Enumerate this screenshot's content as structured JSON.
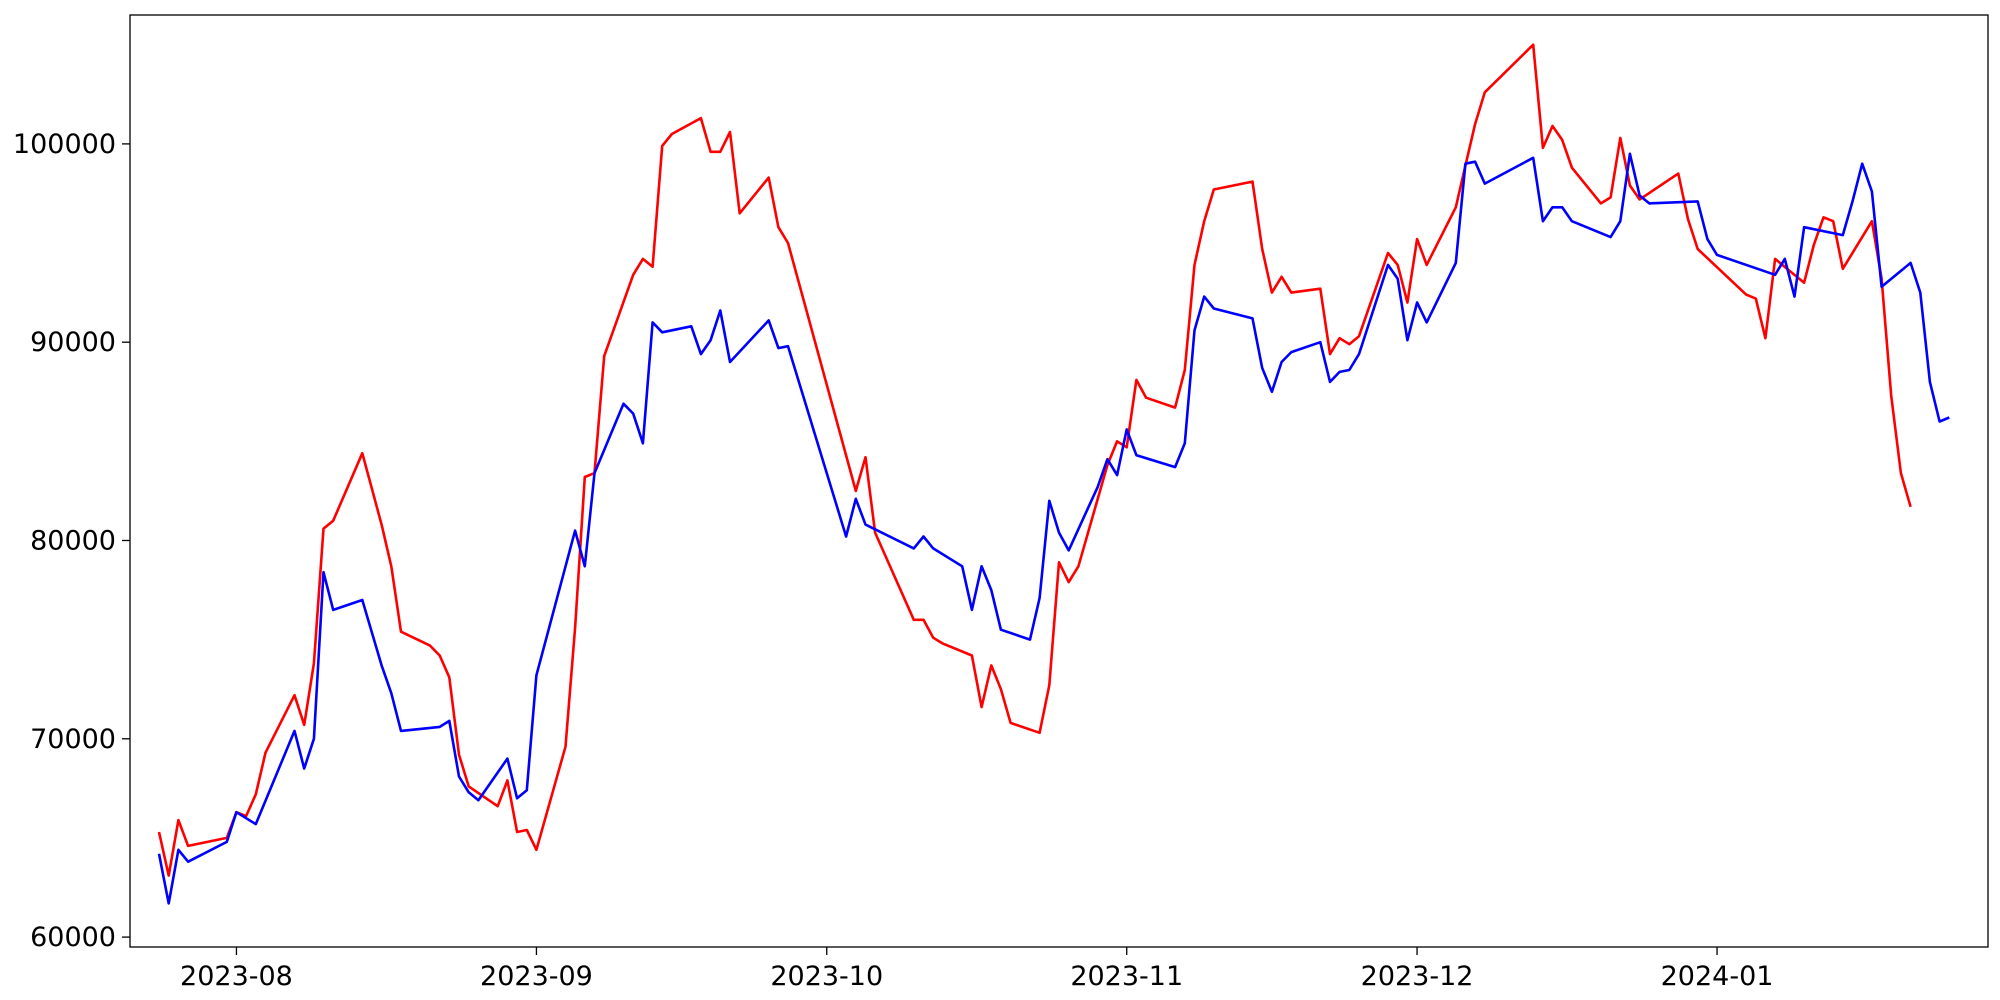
{
  "chart_data": {
    "type": "line",
    "title": "",
    "xlabel": "",
    "ylabel": "",
    "xlim": [
      "2023-07-21",
      "2024-01-29"
    ],
    "ylim": [
      59500,
      106500
    ],
    "grid": false,
    "x_ticks": [
      "2023-08",
      "2023-09",
      "2023-10",
      "2023-11",
      "2023-12",
      "2024-01"
    ],
    "y_ticks": [
      60000,
      70000,
      80000,
      90000,
      100000
    ],
    "y_tick_labels": [
      "60000",
      "70000",
      "80000",
      "90000",
      "100000"
    ],
    "series": [
      {
        "color": "#ff0000",
        "points": [
          [
            "2023-07-24",
            65300
          ],
          [
            "2023-07-25",
            63100
          ],
          [
            "2023-07-26",
            65900
          ],
          [
            "2023-07-27",
            64600
          ],
          [
            "2023-07-31",
            65000
          ],
          [
            "2023-08-01",
            66300
          ],
          [
            "2023-08-02",
            66100
          ],
          [
            "2023-08-03",
            67200
          ],
          [
            "2023-08-04",
            69300
          ],
          [
            "2023-08-07",
            72200
          ],
          [
            "2023-08-08",
            70700
          ],
          [
            "2023-08-09",
            73800
          ],
          [
            "2023-08-10",
            80600
          ],
          [
            "2023-08-11",
            81000
          ],
          [
            "2023-08-14",
            84400
          ],
          [
            "2023-08-16",
            80800
          ],
          [
            "2023-08-17",
            78700
          ],
          [
            "2023-08-18",
            75400
          ],
          [
            "2023-08-21",
            74700
          ],
          [
            "2023-08-22",
            74200
          ],
          [
            "2023-08-23",
            73100
          ],
          [
            "2023-08-24",
            69200
          ],
          [
            "2023-08-25",
            67600
          ],
          [
            "2023-08-28",
            66600
          ],
          [
            "2023-08-29",
            67900
          ],
          [
            "2023-08-30",
            65300
          ],
          [
            "2023-08-31",
            65400
          ],
          [
            "2023-09-01",
            64400
          ],
          [
            "2023-09-04",
            69600
          ],
          [
            "2023-09-05",
            75600
          ],
          [
            "2023-09-06",
            83200
          ],
          [
            "2023-09-07",
            83400
          ],
          [
            "2023-09-08",
            89300
          ],
          [
            "2023-09-11",
            93400
          ],
          [
            "2023-09-12",
            94200
          ],
          [
            "2023-09-13",
            93800
          ],
          [
            "2023-09-14",
            99900
          ],
          [
            "2023-09-15",
            100500
          ],
          [
            "2023-09-18",
            101300
          ],
          [
            "2023-09-19",
            99600
          ],
          [
            "2023-09-20",
            99600
          ],
          [
            "2023-09-21",
            100600
          ],
          [
            "2023-09-22",
            96500
          ],
          [
            "2023-09-25",
            98300
          ],
          [
            "2023-09-26",
            95800
          ],
          [
            "2023-09-27",
            95000
          ],
          [
            "2023-10-04",
            82500
          ],
          [
            "2023-10-05",
            84200
          ],
          [
            "2023-10-06",
            80400
          ],
          [
            "2023-10-10",
            76000
          ],
          [
            "2023-10-11",
            76000
          ],
          [
            "2023-10-12",
            75100
          ],
          [
            "2023-10-13",
            74800
          ],
          [
            "2023-10-16",
            74200
          ],
          [
            "2023-10-17",
            71600
          ],
          [
            "2023-10-18",
            73700
          ],
          [
            "2023-10-19",
            72500
          ],
          [
            "2023-10-20",
            70800
          ],
          [
            "2023-10-23",
            70300
          ],
          [
            "2023-10-24",
            72700
          ],
          [
            "2023-10-25",
            78900
          ],
          [
            "2023-10-26",
            77900
          ],
          [
            "2023-10-27",
            78700
          ],
          [
            "2023-10-30",
            83800
          ],
          [
            "2023-10-31",
            85000
          ],
          [
            "2023-11-01",
            84700
          ],
          [
            "2023-11-02",
            88100
          ],
          [
            "2023-11-03",
            87200
          ],
          [
            "2023-11-06",
            86700
          ],
          [
            "2023-11-07",
            88600
          ],
          [
            "2023-11-08",
            93900
          ],
          [
            "2023-11-09",
            96100
          ],
          [
            "2023-11-10",
            97700
          ],
          [
            "2023-11-14",
            98100
          ],
          [
            "2023-11-15",
            94700
          ],
          [
            "2023-11-16",
            92500
          ],
          [
            "2023-11-17",
            93300
          ],
          [
            "2023-11-18",
            92500
          ],
          [
            "2023-11-21",
            92700
          ],
          [
            "2023-11-22",
            89400
          ],
          [
            "2023-11-23",
            90200
          ],
          [
            "2023-11-24",
            89900
          ],
          [
            "2023-11-25",
            90300
          ],
          [
            "2023-11-28",
            94500
          ],
          [
            "2023-11-29",
            93900
          ],
          [
            "2023-11-30",
            92000
          ],
          [
            "2023-12-01",
            95200
          ],
          [
            "2023-12-02",
            93900
          ],
          [
            "2023-12-05",
            96800
          ],
          [
            "2023-12-06",
            98900
          ],
          [
            "2023-12-07",
            101000
          ],
          [
            "2023-12-08",
            102600
          ],
          [
            "2023-12-13",
            105000
          ],
          [
            "2023-12-14",
            99800
          ],
          [
            "2023-12-15",
            100900
          ],
          [
            "2023-12-16",
            100200
          ],
          [
            "2023-12-17",
            98800
          ],
          [
            "2023-12-20",
            97000
          ],
          [
            "2023-12-21",
            97300
          ],
          [
            "2023-12-22",
            100300
          ],
          [
            "2023-12-23",
            97900
          ],
          [
            "2023-12-24",
            97200
          ],
          [
            "2023-12-28",
            98500
          ],
          [
            "2023-12-29",
            96200
          ],
          [
            "2023-12-30",
            94700
          ],
          [
            "2024-01-04",
            92400
          ],
          [
            "2024-01-05",
            92200
          ],
          [
            "2024-01-06",
            90200
          ],
          [
            "2024-01-07",
            94200
          ],
          [
            "2024-01-10",
            93000
          ],
          [
            "2024-01-11",
            94900
          ],
          [
            "2024-01-12",
            96300
          ],
          [
            "2024-01-13",
            96100
          ],
          [
            "2024-01-14",
            93700
          ],
          [
            "2024-01-17",
            96100
          ],
          [
            "2024-01-18",
            93200
          ],
          [
            "2024-01-19",
            87300
          ],
          [
            "2024-01-20",
            83400
          ],
          [
            "2024-01-21",
            81700
          ]
        ]
      },
      {
        "color": "#0000ff",
        "points": [
          [
            "2023-07-24",
            64200
          ],
          [
            "2023-07-25",
            61700
          ],
          [
            "2023-07-26",
            64400
          ],
          [
            "2023-07-27",
            63800
          ],
          [
            "2023-07-31",
            64800
          ],
          [
            "2023-08-01",
            66300
          ],
          [
            "2023-08-03",
            65700
          ],
          [
            "2023-08-07",
            70400
          ],
          [
            "2023-08-08",
            68500
          ],
          [
            "2023-08-09",
            70000
          ],
          [
            "2023-08-10",
            78400
          ],
          [
            "2023-08-11",
            76500
          ],
          [
            "2023-08-14",
            77000
          ],
          [
            "2023-08-16",
            73700
          ],
          [
            "2023-08-17",
            72300
          ],
          [
            "2023-08-18",
            70400
          ],
          [
            "2023-08-22",
            70600
          ],
          [
            "2023-08-23",
            70900
          ],
          [
            "2023-08-24",
            68100
          ],
          [
            "2023-08-25",
            67300
          ],
          [
            "2023-08-26",
            66900
          ],
          [
            "2023-08-29",
            69000
          ],
          [
            "2023-08-30",
            67000
          ],
          [
            "2023-08-31",
            67400
          ],
          [
            "2023-09-01",
            73200
          ],
          [
            "2023-09-05",
            80500
          ],
          [
            "2023-09-06",
            78700
          ],
          [
            "2023-09-07",
            83400
          ],
          [
            "2023-09-10",
            86900
          ],
          [
            "2023-09-11",
            86400
          ],
          [
            "2023-09-12",
            84900
          ],
          [
            "2023-09-13",
            91000
          ],
          [
            "2023-09-14",
            90500
          ],
          [
            "2023-09-17",
            90800
          ],
          [
            "2023-09-18",
            89400
          ],
          [
            "2023-09-19",
            90100
          ],
          [
            "2023-09-20",
            91600
          ],
          [
            "2023-09-21",
            89000
          ],
          [
            "2023-09-25",
            91100
          ],
          [
            "2023-09-26",
            89700
          ],
          [
            "2023-09-27",
            89800
          ],
          [
            "2023-10-03",
            80200
          ],
          [
            "2023-10-04",
            82100
          ],
          [
            "2023-10-05",
            80800
          ],
          [
            "2023-10-10",
            79600
          ],
          [
            "2023-10-11",
            80200
          ],
          [
            "2023-10-12",
            79600
          ],
          [
            "2023-10-15",
            78700
          ],
          [
            "2023-10-16",
            76500
          ],
          [
            "2023-10-17",
            78700
          ],
          [
            "2023-10-18",
            77500
          ],
          [
            "2023-10-19",
            75500
          ],
          [
            "2023-10-22",
            75000
          ],
          [
            "2023-10-23",
            77100
          ],
          [
            "2023-10-24",
            82000
          ],
          [
            "2023-10-25",
            80400
          ],
          [
            "2023-10-26",
            79500
          ],
          [
            "2023-10-29",
            82700
          ],
          [
            "2023-10-30",
            84100
          ],
          [
            "2023-10-31",
            83300
          ],
          [
            "2023-11-01",
            85600
          ],
          [
            "2023-11-02",
            84300
          ],
          [
            "2023-11-06",
            83700
          ],
          [
            "2023-11-07",
            84900
          ],
          [
            "2023-11-08",
            90600
          ],
          [
            "2023-11-09",
            92300
          ],
          [
            "2023-11-10",
            91700
          ],
          [
            "2023-11-14",
            91200
          ],
          [
            "2023-11-15",
            88700
          ],
          [
            "2023-11-16",
            87500
          ],
          [
            "2023-11-17",
            89000
          ],
          [
            "2023-11-18",
            89500
          ],
          [
            "2023-11-21",
            90000
          ],
          [
            "2023-11-22",
            88000
          ],
          [
            "2023-11-23",
            88500
          ],
          [
            "2023-11-24",
            88600
          ],
          [
            "2023-11-25",
            89400
          ],
          [
            "2023-11-28",
            93900
          ],
          [
            "2023-11-29",
            93200
          ],
          [
            "2023-11-30",
            90100
          ],
          [
            "2023-12-01",
            92000
          ],
          [
            "2023-12-02",
            91000
          ],
          [
            "2023-12-05",
            94000
          ],
          [
            "2023-12-06",
            99000
          ],
          [
            "2023-12-07",
            99100
          ],
          [
            "2023-12-08",
            98000
          ],
          [
            "2023-12-13",
            99300
          ],
          [
            "2023-12-14",
            96100
          ],
          [
            "2023-12-15",
            96800
          ],
          [
            "2023-12-16",
            96800
          ],
          [
            "2023-12-17",
            96100
          ],
          [
            "2023-12-21",
            95300
          ],
          [
            "2023-12-22",
            96100
          ],
          [
            "2023-12-23",
            99500
          ],
          [
            "2023-12-24",
            97400
          ],
          [
            "2023-12-25",
            97000
          ],
          [
            "2023-12-30",
            97100
          ],
          [
            "2023-12-31",
            95200
          ],
          [
            "2024-01-01",
            94400
          ],
          [
            "2024-01-07",
            93400
          ],
          [
            "2024-01-08",
            94200
          ],
          [
            "2024-01-09",
            92300
          ],
          [
            "2024-01-10",
            95800
          ],
          [
            "2024-01-14",
            95400
          ],
          [
            "2024-01-15",
            97100
          ],
          [
            "2024-01-16",
            99000
          ],
          [
            "2024-01-17",
            97600
          ],
          [
            "2024-01-18",
            92800
          ],
          [
            "2024-01-21",
            94000
          ],
          [
            "2024-01-22",
            92500
          ],
          [
            "2024-01-23",
            88000
          ],
          [
            "2024-01-24",
            86000
          ],
          [
            "2024-01-25",
            86200
          ]
        ]
      }
    ]
  }
}
